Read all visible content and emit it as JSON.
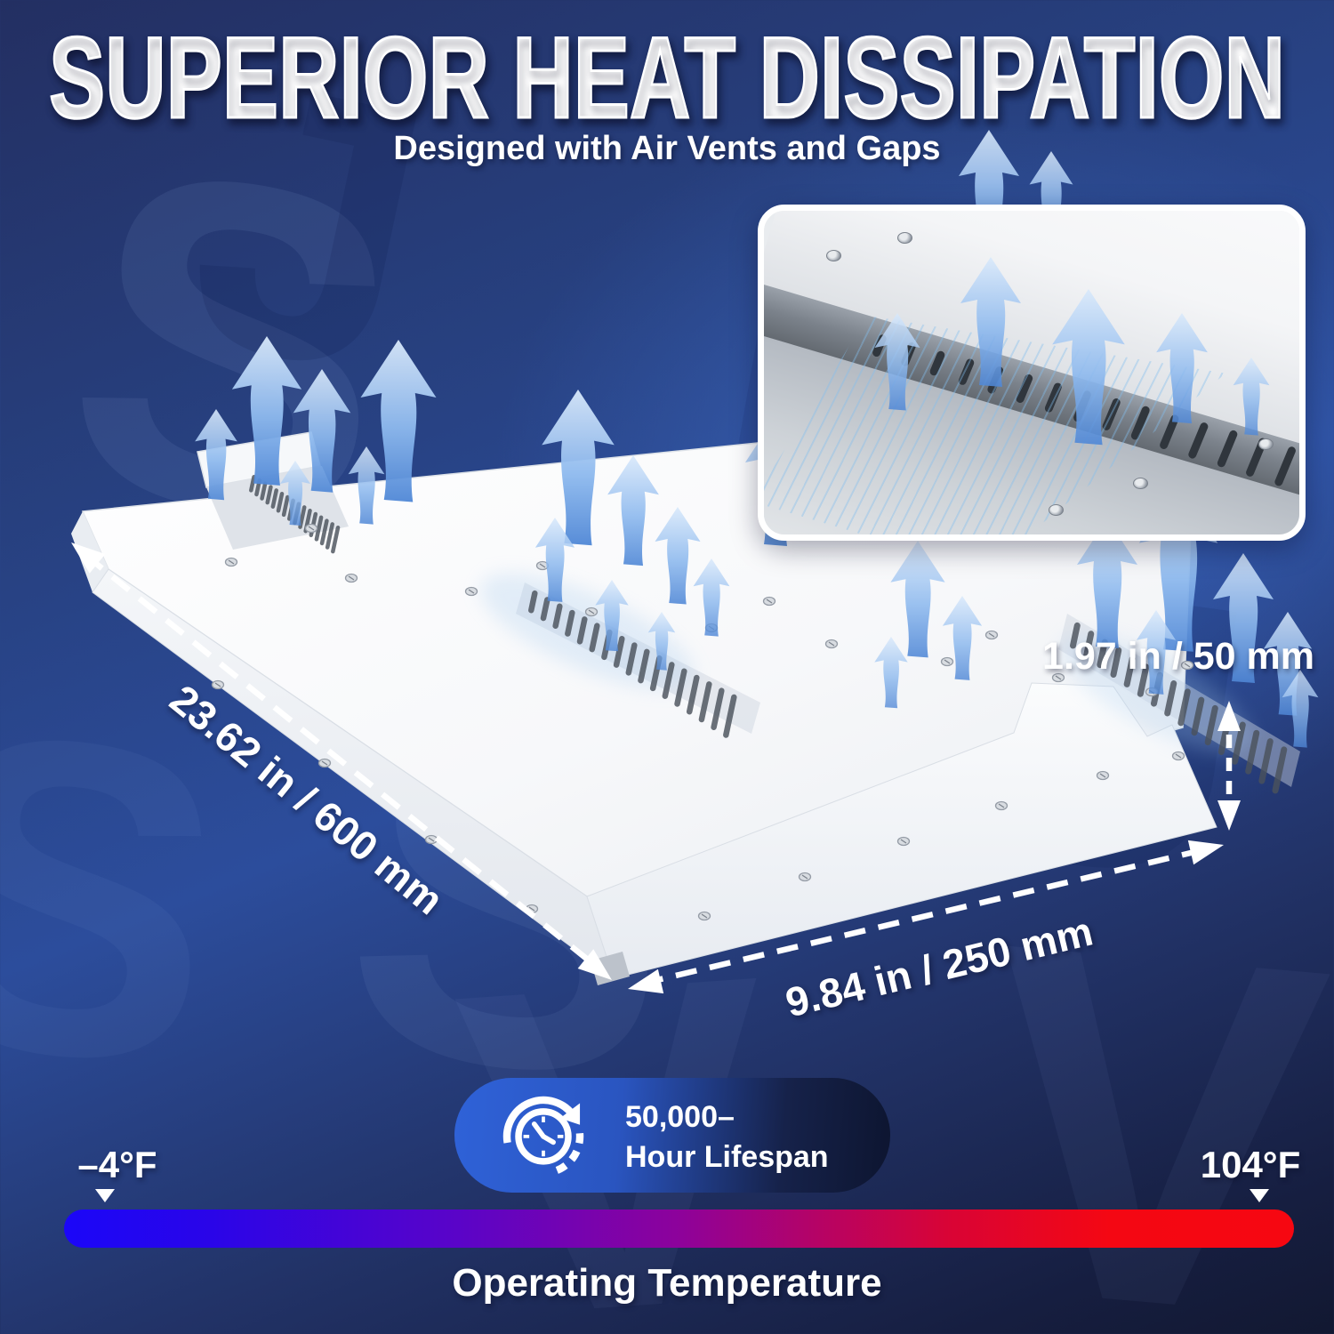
{
  "page": {
    "title": "SUPERIOR HEAT DISSIPATION",
    "subtitle": "Designed with Air Vents and Gaps"
  },
  "dimensions": {
    "length_label": "23.62 in / 600 mm",
    "width_label": "9.84 in / 250 mm",
    "height_label": "1.97 in / 50 mm"
  },
  "lifespan_badge": {
    "value_line": "50,000–",
    "unit_line": "Hour Lifespan",
    "icon": "clock-cycle-icon"
  },
  "temperature_scale": {
    "min_label": "–4°F",
    "max_label": "104°F",
    "caption": "Operating Temperature",
    "gradient": [
      "#1b06f8",
      "#5a04c8",
      "#8d029b",
      "#d90435",
      "#f60711"
    ]
  },
  "colors": {
    "background_top": "#27407f",
    "background_bright": "#2c4d9c",
    "background_bottom": "#121831",
    "badge_blue": "#2f62d8",
    "arrow_blue": "#5089d8",
    "fixture_white": "#ffffff",
    "dimension_line": "#ffffff"
  }
}
